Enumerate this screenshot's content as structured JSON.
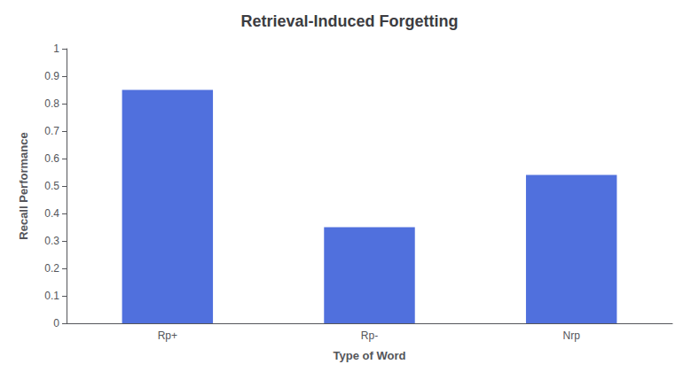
{
  "chart_data": {
    "type": "bar",
    "title": "Retrieval-Induced Forgetting",
    "xlabel": "Type of Word",
    "ylabel": "Recall Performance",
    "categories": [
      "Rp+",
      "Rp-",
      "Nrp"
    ],
    "values": [
      0.85,
      0.35,
      0.54
    ],
    "ylim": [
      0,
      1.0
    ],
    "yticks": [
      0,
      0.1,
      0.2,
      0.3,
      0.4,
      0.5,
      0.6,
      0.7,
      0.8,
      0.9,
      1
    ],
    "grid": false
  }
}
